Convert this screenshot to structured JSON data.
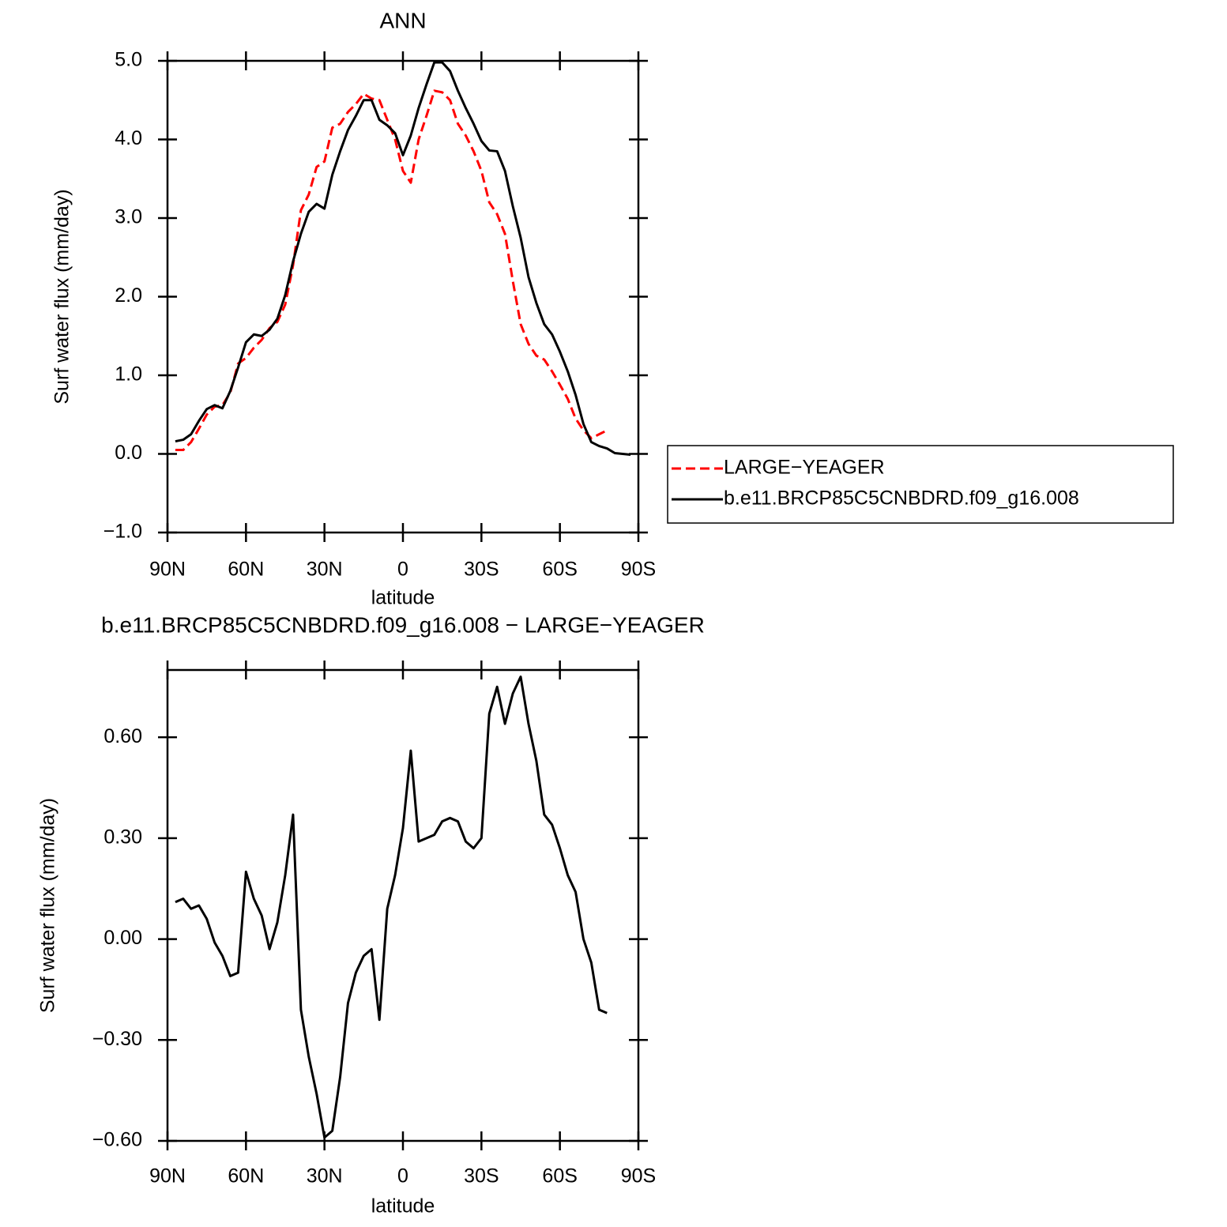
{
  "chart_data": [
    {
      "type": "line",
      "title": "ANN",
      "xlabel": "latitude",
      "ylabel": "Surf water flux (mm/day)",
      "x": [
        87,
        84,
        81,
        78,
        75,
        72,
        69,
        66,
        63,
        60,
        57,
        54,
        51,
        48,
        45,
        42,
        39,
        36,
        33,
        30,
        27,
        24,
        21,
        18,
        15,
        12,
        9,
        6,
        3,
        0,
        -3,
        -6,
        -9,
        -12,
        -15,
        -18,
        -21,
        -24,
        -27,
        -30,
        -33,
        -36,
        -39,
        -42,
        -45,
        -48,
        -51,
        -54,
        -57,
        -60,
        -63,
        -66,
        -69,
        -72,
        -75,
        -78,
        -81,
        -84,
        -87
      ],
      "series": [
        {
          "name": "LARGE−YEAGER",
          "color": "#ff0000",
          "dash": "dashed",
          "values": [
            0.05,
            0.05,
            0.15,
            0.32,
            0.5,
            0.6,
            0.62,
            0.78,
            1.15,
            1.22,
            1.35,
            1.45,
            1.6,
            1.68,
            1.9,
            2.4,
            3.1,
            3.3,
            3.65,
            3.72,
            4.15,
            4.2,
            4.35,
            4.45,
            4.58,
            4.52,
            4.5,
            4.25,
            4.0,
            3.6,
            3.45,
            4.0,
            4.3,
            4.62,
            4.6,
            4.5,
            4.2,
            4.05,
            3.85,
            3.6,
            3.2,
            3.05,
            2.8,
            2.2,
            1.65,
            1.4,
            1.25,
            1.2,
            1.05,
            0.88,
            0.7,
            0.45,
            0.3,
            0.2,
            0.25,
            0.3,
            null,
            null,
            null
          ]
        },
        {
          "name": "b.e11.BRCP85C5CNBDRD.f09_g16.008",
          "color": "#000000",
          "dash": "solid",
          "values": [
            0.16,
            0.18,
            0.25,
            0.42,
            0.57,
            0.62,
            0.58,
            0.8,
            1.1,
            1.42,
            1.52,
            1.5,
            1.58,
            1.72,
            2.02,
            2.45,
            2.8,
            3.08,
            3.18,
            3.12,
            3.55,
            3.85,
            4.12,
            4.3,
            4.5,
            4.5,
            4.25,
            4.18,
            4.08,
            3.8,
            4.05,
            4.4,
            4.7,
            4.98,
            4.98,
            4.87,
            4.62,
            4.4,
            4.2,
            3.98,
            3.86,
            3.85,
            3.6,
            3.15,
            2.75,
            2.25,
            1.92,
            1.65,
            1.52,
            1.3,
            1.05,
            0.75,
            0.38,
            0.15,
            0.1,
            0.07,
            0.01,
            0.0,
            -0.01
          ]
        }
      ],
      "xlim": [
        90,
        -90
      ],
      "xticks": [
        {
          "value": 90,
          "label": "90N"
        },
        {
          "value": 60,
          "label": "60N"
        },
        {
          "value": 30,
          "label": "30N"
        },
        0,
        {
          "value": -30,
          "label": "30S"
        },
        {
          "value": -60,
          "label": "60S"
        },
        {
          "value": -90,
          "label": "90S"
        }
      ],
      "ylim": [
        -1,
        5
      ],
      "yticks": [
        {
          "value": -1,
          "label": "−1.0"
        },
        {
          "value": 0,
          "label": "0.0"
        },
        {
          "value": 1,
          "label": "1.0"
        },
        {
          "value": 2,
          "label": "2.0"
        },
        {
          "value": 3,
          "label": "3.0"
        },
        {
          "value": 4,
          "label": "4.0"
        },
        {
          "value": 5,
          "label": "5.0"
        }
      ],
      "legend": "outside-right"
    },
    {
      "type": "line",
      "title": "b.e11.BRCP85C5CNBDRD.f09_g16.008 − LARGE−YEAGER",
      "xlabel": "latitude",
      "ylabel": "Surf water flux (mm/day)",
      "x": [
        87,
        84,
        81,
        78,
        75,
        72,
        69,
        66,
        63,
        60,
        57,
        54,
        51,
        48,
        45,
        42,
        39,
        36,
        33,
        30,
        27,
        24,
        21,
        18,
        15,
        12,
        9,
        6,
        3,
        0,
        -3,
        -6,
        -9,
        -12,
        -15,
        -18,
        -21,
        -24,
        -27,
        -30,
        -33,
        -36,
        -39,
        -42,
        -45,
        -48,
        -51,
        -54,
        -57,
        -60,
        -63,
        -66,
        -69,
        -72,
        -75,
        -78,
        -81,
        -84,
        -87
      ],
      "values": [
        0.11,
        0.12,
        0.09,
        0.1,
        0.06,
        -0.01,
        -0.05,
        -0.11,
        -0.1,
        0.2,
        0.12,
        0.07,
        -0.03,
        0.05,
        0.19,
        0.37,
        -0.21,
        -0.35,
        -0.46,
        -0.59,
        -0.57,
        -0.41,
        -0.19,
        -0.1,
        -0.05,
        -0.03,
        -0.24,
        0.09,
        0.19,
        0.33,
        0.56,
        0.29,
        0.3,
        0.31,
        0.35,
        0.36,
        0.35,
        0.29,
        0.27,
        0.3,
        0.67,
        0.75,
        0.64,
        0.73,
        0.78,
        0.64,
        0.53,
        0.37,
        0.34,
        0.27,
        0.19,
        0.14,
        0.0,
        -0.07,
        -0.21,
        -0.22,
        null,
        null,
        null
      ],
      "color": "#000000",
      "xlim": [
        90,
        -90
      ],
      "xticks": [
        {
          "value": 90,
          "label": "90N"
        },
        {
          "value": 60,
          "label": "60N"
        },
        {
          "value": 30,
          "label": "30N"
        },
        0,
        {
          "value": -30,
          "label": "30S"
        },
        {
          "value": -60,
          "label": "60S"
        },
        {
          "value": -90,
          "label": "90S"
        }
      ],
      "ylim": [
        -0.6,
        0.8
      ],
      "yticks": [
        {
          "value": -0.6,
          "label": "−0.60"
        },
        {
          "value": -0.3,
          "label": "−0.30"
        },
        {
          "value": 0,
          "label": "0.00"
        },
        {
          "value": 0.3,
          "label": "0.30"
        },
        {
          "value": 0.6,
          "label": "0.60"
        }
      ]
    }
  ]
}
